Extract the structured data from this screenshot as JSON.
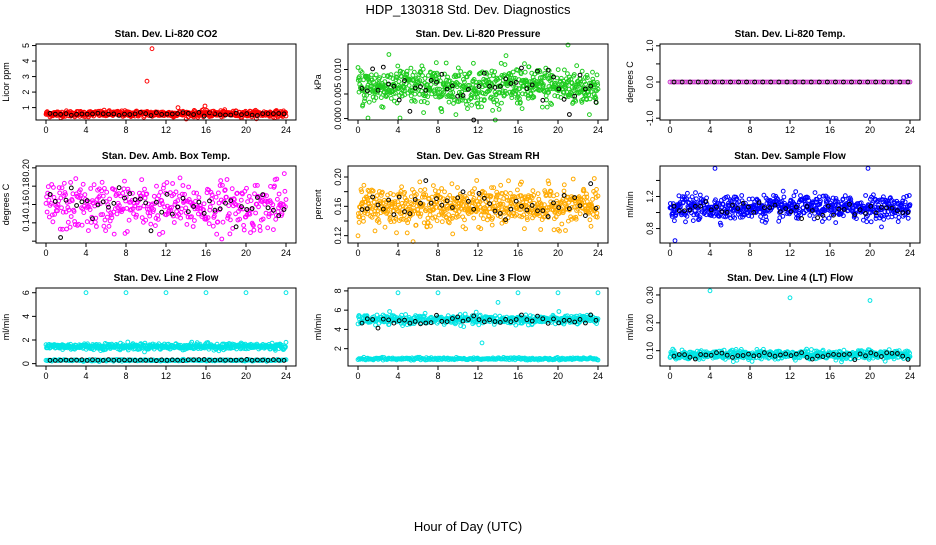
{
  "figure": {
    "title": "HDP_130318  Std. Dev. Diagnostics",
    "xlabel": "Hour of Day (UTC)"
  },
  "chart_data": [
    {
      "type": "scatter",
      "id": "co2",
      "title": "Stan. Dev. Li-820 CO2",
      "ylabel": "Licor ppm",
      "xlim": [
        -1,
        25
      ],
      "ylim": [
        0.2,
        5.1
      ],
      "yticks": [
        1,
        2,
        3,
        4,
        5
      ],
      "ytick_labels": [
        "1",
        "2",
        "3",
        "4",
        "5"
      ],
      "xticks": [
        0,
        4,
        8,
        12,
        16,
        20,
        24
      ],
      "color": "#ff0000",
      "dense": {
        "n": 600,
        "center": 0.6,
        "spread": 0.12
      },
      "outliers": [
        [
          10.6,
          4.8
        ],
        [
          10.1,
          2.7
        ],
        [
          13.2,
          1.0
        ],
        [
          15.9,
          1.1
        ],
        [
          16.6,
          0.75
        ]
      ],
      "black": {
        "n": 45,
        "center": 0.58,
        "spread": 0.06
      }
    },
    {
      "type": "scatter",
      "id": "pressure",
      "title": "Stan. Dev. Li-820 Pressure",
      "ylabel": "kPa",
      "xlim": [
        -1,
        25
      ],
      "ylim": [
        -0.0003,
        0.0152
      ],
      "yticks": [
        0.0,
        0.005,
        0.01
      ],
      "ytick_labels": [
        "0.000",
        "0.005",
        "0.010"
      ],
      "xticks": [
        0,
        4,
        8,
        12,
        16,
        20,
        24
      ],
      "color": "#1fcc1f",
      "dense": {
        "n": 700,
        "center": 0.0065,
        "spread": 0.0025
      },
      "outliers": [
        [
          1.0,
          0.0001
        ],
        [
          4.2,
          0.0001
        ],
        [
          21.0,
          0.015
        ]
      ],
      "black": {
        "n": 45,
        "center": 0.006,
        "spread": 0.003
      }
    },
    {
      "type": "scatter",
      "id": "temp",
      "title": "Stan. Dev. Li-820 Temp.",
      "ylabel": "degrees C",
      "xlim": [
        -1,
        25
      ],
      "ylim": [
        -1.05,
        1.05
      ],
      "yticks": [
        -1.0,
        -0.5,
        0.0,
        0.5,
        1.0
      ],
      "ytick_labels": [
        "-1.0",
        "",
        "0.0",
        "",
        "1.0"
      ],
      "xticks": [
        0,
        4,
        8,
        12,
        16,
        20,
        24
      ],
      "color": "#cc33cc",
      "dense": {
        "n": 120,
        "center": 0.0,
        "spread": 0.0
      },
      "outliers": [],
      "black": {
        "n": 30,
        "center": 0.0,
        "spread": 0.0
      }
    },
    {
      "type": "scatter",
      "id": "ambbox",
      "title": "Stan. Dev. Amb. Box Temp.",
      "ylabel": "degrees C",
      "xlim": [
        -1,
        25
      ],
      "ylim": [
        0.118,
        0.202
      ],
      "yticks": [
        0.12,
        0.14,
        0.16,
        0.18,
        0.2
      ],
      "ytick_labels": [
        "",
        "0.14",
        "0.16",
        "0.18",
        "0.20"
      ],
      "xticks": [
        0,
        4,
        8,
        12,
        16,
        20,
        24
      ],
      "color": "#ff00ff",
      "dense": {
        "n": 420,
        "center": 0.158,
        "spread": 0.017
      },
      "outliers": [],
      "black": {
        "n": 45,
        "center": 0.16,
        "spread": 0.015
      }
    },
    {
      "type": "scatter",
      "id": "rh",
      "title": "Stan. Dev. Gas Stream RH",
      "ylabel": "percent",
      "xlim": [
        -1,
        25
      ],
      "ylim": [
        0.11,
        0.215
      ],
      "yticks": [
        0.12,
        0.14,
        0.16,
        0.18,
        0.2
      ],
      "ytick_labels": [
        "0.12",
        "",
        "0.16",
        "",
        "0.20"
      ],
      "xticks": [
        0,
        4,
        8,
        12,
        16,
        20,
        24
      ],
      "color": "#ffaa00",
      "dense": {
        "n": 650,
        "center": 0.16,
        "spread": 0.016
      },
      "outliers": [],
      "black": {
        "n": 45,
        "center": 0.16,
        "spread": 0.017
      }
    },
    {
      "type": "scatter",
      "id": "sampleflow",
      "title": "Stan. Dev. Sample Flow",
      "ylabel": "ml/min",
      "xlim": [
        -1,
        25
      ],
      "ylim": [
        0.62,
        1.58
      ],
      "yticks": [
        0.8,
        1.0,
        1.2,
        1.4
      ],
      "ytick_labels": [
        "0.8",
        "",
        "1.2",
        ""
      ],
      "xticks": [
        0,
        4,
        8,
        12,
        16,
        20,
        24
      ],
      "color": "#0000ff",
      "dense": {
        "n": 650,
        "center": 1.06,
        "spread": 0.09
      },
      "outliers": [
        [
          4.5,
          1.55
        ],
        [
          19.8,
          1.55
        ],
        [
          0.5,
          0.65
        ]
      ],
      "black": {
        "n": 45,
        "center": 1.05,
        "spread": 0.06
      }
    },
    {
      "type": "scatter",
      "id": "line2",
      "title": "Stan. Dev. Line 2 Flow",
      "ylabel": "ml/min",
      "xlim": [
        -1,
        25
      ],
      "ylim": [
        -0.2,
        6.4
      ],
      "yticks": [
        0,
        2,
        4,
        6
      ],
      "ytick_labels": [
        "0",
        "2",
        "4",
        "6"
      ],
      "xticks": [
        0,
        4,
        8,
        12,
        16,
        20,
        24
      ],
      "color": "#00e5e5",
      "bands": [
        {
          "n": 520,
          "center": 1.45,
          "spread": 0.17
        },
        {
          "n": 200,
          "center": 0.28,
          "spread": 0.04
        }
      ],
      "outliers": [
        [
          4.0,
          6.0
        ],
        [
          8.0,
          6.0
        ],
        [
          12.0,
          6.0
        ],
        [
          16.0,
          6.0
        ],
        [
          20.0,
          6.0
        ],
        [
          24.0,
          6.0
        ]
      ],
      "black": {
        "n": 45,
        "center": 0.3,
        "spread": 0.03
      }
    },
    {
      "type": "scatter",
      "id": "line3",
      "title": "Stan. Dev. Line 3 Flow",
      "ylabel": "ml/min",
      "xlim": [
        -1,
        25
      ],
      "ylim": [
        0.2,
        8.3
      ],
      "yticks": [
        2,
        4,
        6,
        8
      ],
      "ytick_labels": [
        "2",
        "4",
        "6",
        "8"
      ],
      "xticks": [
        0,
        4,
        8,
        12,
        16,
        20,
        24
      ],
      "color": "#00e5e5",
      "bands": [
        {
          "n": 480,
          "center": 5.0,
          "spread": 0.3
        },
        {
          "n": 250,
          "center": 0.95,
          "spread": 0.08
        }
      ],
      "outliers": [
        [
          4.0,
          7.8
        ],
        [
          8.0,
          7.8
        ],
        [
          12.4,
          2.6
        ],
        [
          16.0,
          7.8
        ],
        [
          20.0,
          7.8
        ],
        [
          24.0,
          7.8
        ],
        [
          14.0,
          6.8
        ]
      ],
      "black": {
        "n": 45,
        "center": 5.0,
        "spread": 0.35
      }
    },
    {
      "type": "scatter",
      "id": "line4",
      "title": "Stan. Dev. Line 4 (LT) Flow",
      "ylabel": "ml/min",
      "xlim": [
        -1,
        25
      ],
      "ylim": [
        0.045,
        0.325
      ],
      "yticks": [
        0.1,
        0.2,
        0.3
      ],
      "ytick_labels": [
        "0.10",
        "0.20",
        "0.30"
      ],
      "xticks": [
        0,
        4,
        8,
        12,
        16,
        20,
        24
      ],
      "color": "#00e5e5",
      "dense": {
        "n": 600,
        "center": 0.085,
        "spread": 0.01
      },
      "outliers": [
        [
          4.0,
          0.315
        ],
        [
          12.0,
          0.29
        ],
        [
          20.0,
          0.28
        ]
      ],
      "black": {
        "n": 45,
        "center": 0.085,
        "spread": 0.008
      }
    }
  ]
}
